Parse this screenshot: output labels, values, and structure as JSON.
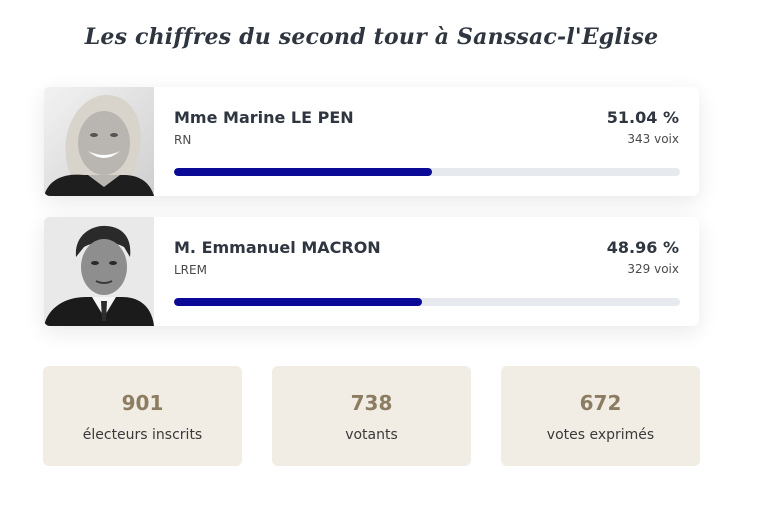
{
  "title": "Les chiffres du second tour à Sanssac-l'Eglise",
  "candidates": [
    {
      "name": "Mme Marine LE PEN",
      "party": "RN",
      "percent_label": "51.04 %",
      "votes_label": "343 voix",
      "percent": 51.04,
      "bar_color": "#0a0a96",
      "portrait_icon": "portrait-photo"
    },
    {
      "name": "M. Emmanuel MACRON",
      "party": "LREM",
      "percent_label": "48.96 %",
      "votes_label": "329 voix",
      "percent": 48.96,
      "bar_color": "#0a0a96",
      "portrait_icon": "portrait-photo"
    }
  ],
  "stats": [
    {
      "value": "901",
      "label": "électeurs inscrits"
    },
    {
      "value": "738",
      "label": "votants"
    },
    {
      "value": "672",
      "label": "votes exprimés"
    }
  ],
  "colors": {
    "bar_track": "#e6e9ee",
    "stat_background": "#f1ece4",
    "stat_value": "#8c7d62"
  }
}
